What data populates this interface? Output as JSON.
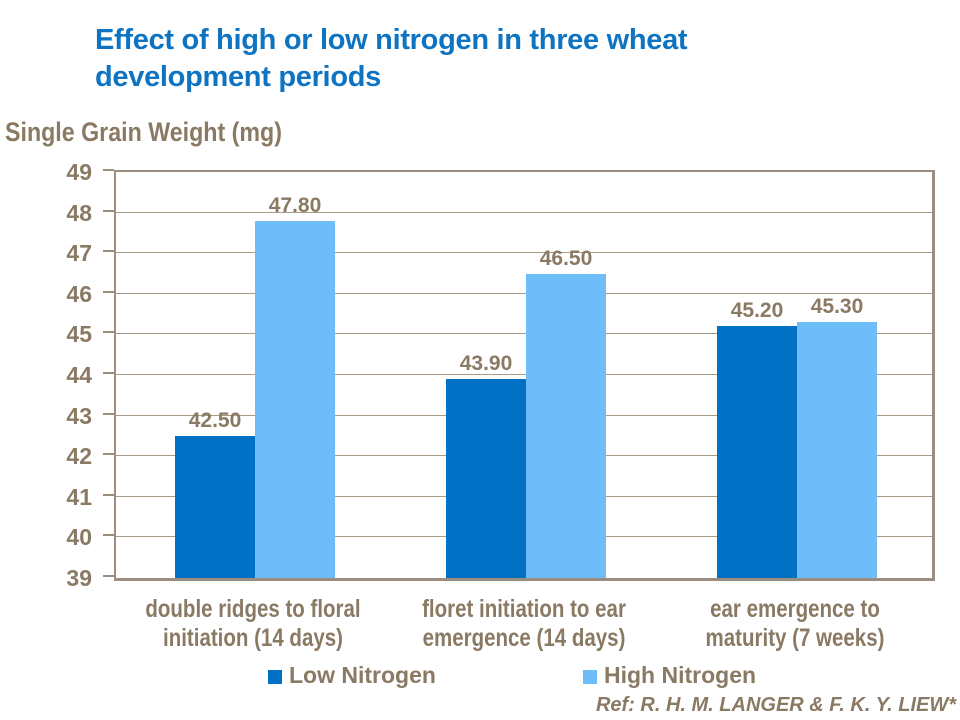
{
  "slide": {
    "title_line1": "Effect of high or low nitrogen in three wheat",
    "title_line2": "development periods",
    "reference": "Ref: R. H. M. LANGER & F. K. Y. LIEW*"
  },
  "colors": {
    "title_blue": "#0E74C2",
    "low_nitrogen_blue": "#0071C5",
    "high_nitrogen_blue": "#6FBDF8",
    "text_brown": "#8A7A64",
    "gridline_brown": "#A79A89",
    "plot_border_brown": "#9C8E7E"
  },
  "chart_data": {
    "type": "bar",
    "title": "Effect of high or low nitrogen in three wheat development periods",
    "ylabel": "Single Grain Weight (mg)",
    "xlabel": "",
    "ylim": [
      39,
      49
    ],
    "yticks": [
      39,
      40,
      41,
      42,
      43,
      44,
      45,
      46,
      47,
      48,
      49
    ],
    "grid": true,
    "legend_position": "bottom",
    "value_label_decimals": 2,
    "categories": [
      "double ridges to floral initiation (14 days)",
      "floret initiation to ear emergence (14 days)",
      "ear emergence to maturity (7 weeks)"
    ],
    "category_lines": [
      [
        "double ridges to floral",
        "initiation (14 days)"
      ],
      [
        "floret initiation to ear",
        "emergence (14 days)"
      ],
      [
        "ear emergence to",
        "maturity (7 weeks)"
      ]
    ],
    "series": [
      {
        "name": "Low Nitrogen",
        "color": "#0071C5",
        "values": [
          42.5,
          43.9,
          45.2
        ]
      },
      {
        "name": "High Nitrogen",
        "color": "#6FBDF8",
        "values": [
          47.8,
          46.5,
          45.3
        ]
      }
    ]
  }
}
